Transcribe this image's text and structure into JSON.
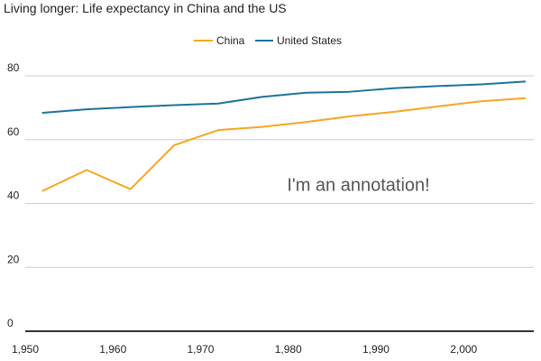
{
  "chart_data": {
    "type": "line",
    "title": "Living longer: Life expectancy in China and the US",
    "xlabel": "",
    "ylabel": "",
    "xlim": [
      1950,
      2008
    ],
    "ylim": [
      0,
      80
    ],
    "x_ticks": [
      {
        "value": 1950,
        "label": "1,950"
      },
      {
        "value": 1960,
        "label": "1,960"
      },
      {
        "value": 1970,
        "label": "1,970"
      },
      {
        "value": 1980,
        "label": "1,980"
      },
      {
        "value": 1990,
        "label": "1,990"
      },
      {
        "value": 2000,
        "label": "2,000"
      }
    ],
    "y_ticks": [
      {
        "value": 0,
        "label": "0"
      },
      {
        "value": 20,
        "label": "20"
      },
      {
        "value": 40,
        "label": "40"
      },
      {
        "value": 60,
        "label": "60"
      },
      {
        "value": 80,
        "label": "80"
      }
    ],
    "grid": true,
    "legend_position": "top",
    "annotation": {
      "text": "I'm an annotation!",
      "x": 1988,
      "y": 44
    },
    "series": [
      {
        "name": "China",
        "color": "#f5a623",
        "points": [
          {
            "x": 1952,
            "y": 44.0
          },
          {
            "x": 1957,
            "y": 50.5
          },
          {
            "x": 1962,
            "y": 44.5
          },
          {
            "x": 1967,
            "y": 58.3
          },
          {
            "x": 1972,
            "y": 63.0
          },
          {
            "x": 1977,
            "y": 64.0
          },
          {
            "x": 1982,
            "y": 65.5
          },
          {
            "x": 1987,
            "y": 67.3
          },
          {
            "x": 1992,
            "y": 68.7
          },
          {
            "x": 1997,
            "y": 70.4
          },
          {
            "x": 2002,
            "y": 72.0
          },
          {
            "x": 2007,
            "y": 73.0
          }
        ]
      },
      {
        "name": "United States",
        "color": "#1f7396",
        "points": [
          {
            "x": 1952,
            "y": 68.4
          },
          {
            "x": 1957,
            "y": 69.5
          },
          {
            "x": 1962,
            "y": 70.2
          },
          {
            "x": 1967,
            "y": 70.8
          },
          {
            "x": 1972,
            "y": 71.3
          },
          {
            "x": 1977,
            "y": 73.4
          },
          {
            "x": 1982,
            "y": 74.7
          },
          {
            "x": 1987,
            "y": 75.0
          },
          {
            "x": 1992,
            "y": 76.1
          },
          {
            "x": 1997,
            "y": 76.8
          },
          {
            "x": 2002,
            "y": 77.3
          },
          {
            "x": 2007,
            "y": 78.2
          }
        ]
      }
    ]
  }
}
